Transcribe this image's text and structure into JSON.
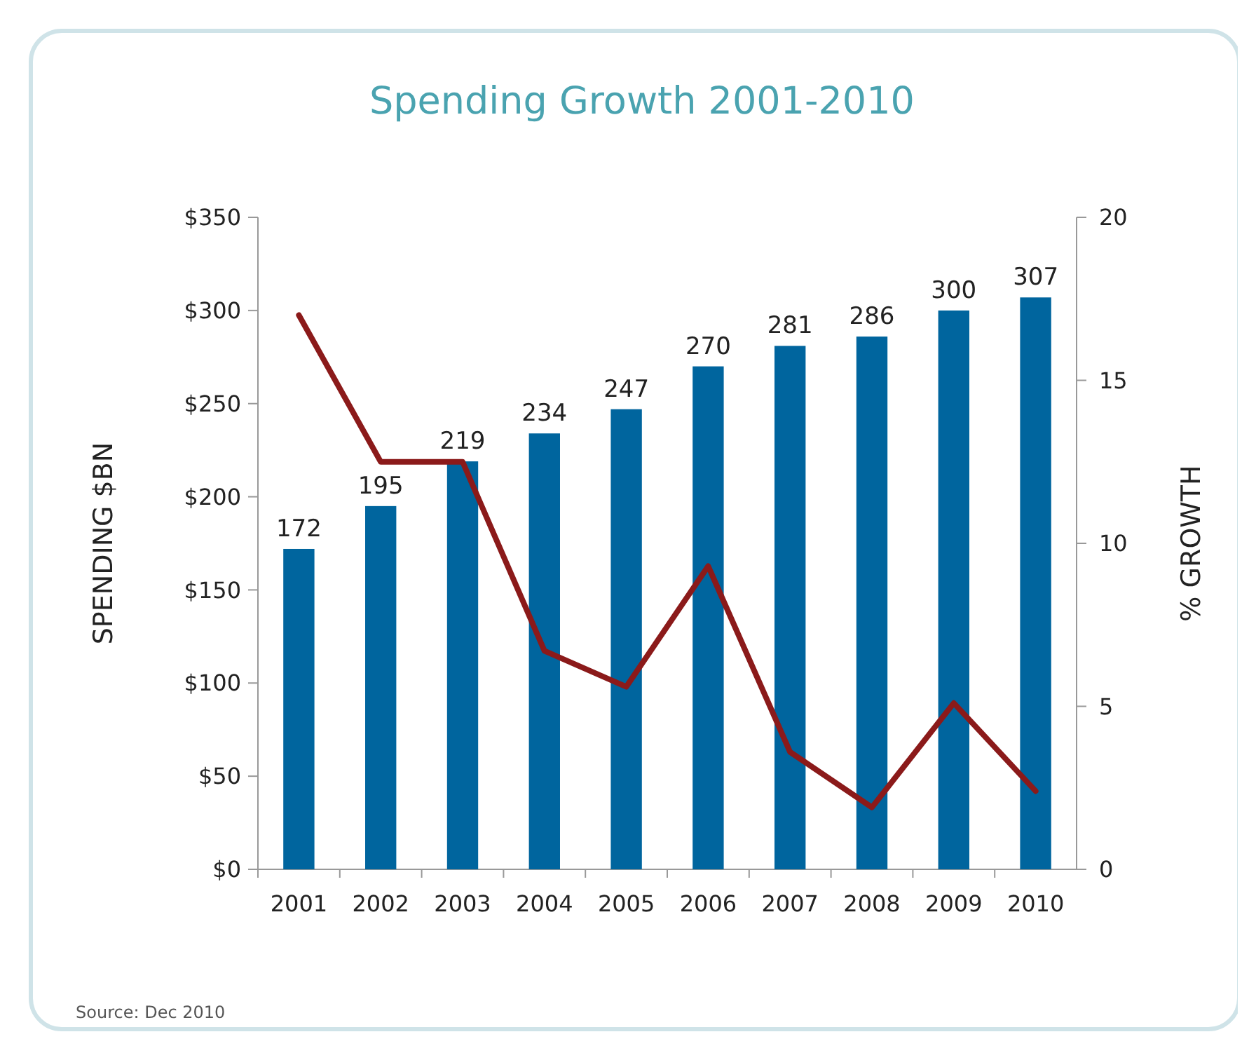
{
  "chart_data": {
    "type": "bar",
    "title": "Spending Growth 2001-2010",
    "ylabel": "SPENDING $BN",
    "y2label": "% GROWTH",
    "categories": [
      "2001",
      "2002",
      "2003",
      "2004",
      "2005",
      "2006",
      "2007",
      "2008",
      "2009",
      "2010"
    ],
    "series": [
      {
        "color": "#00659e",
        "values": [
          172,
          195,
          219,
          234,
          247,
          270,
          281,
          286,
          300,
          307
        ],
        "value_labels": [
          "172",
          "195",
          "219",
          "234",
          "247",
          "270",
          "281",
          "286",
          "300",
          "307"
        ]
      },
      {
        "type": "line",
        "axis": "y2",
        "color": "#8b1a1a",
        "values": [
          17.0,
          12.5,
          12.5,
          6.7,
          5.6,
          9.3,
          3.6,
          1.9,
          5.1,
          2.4
        ]
      }
    ],
    "ylim": [
      0,
      350
    ],
    "yticks": [
      {
        "value": 0,
        "label": "$0"
      },
      {
        "value": 50,
        "label": "$50"
      },
      {
        "value": 100,
        "label": "$100"
      },
      {
        "value": 150,
        "label": "$150"
      },
      {
        "value": 200,
        "label": "$200"
      },
      {
        "value": 250,
        "label": "$250"
      },
      {
        "value": 300,
        "label": "$300"
      },
      {
        "value": 350,
        "label": "$350"
      }
    ],
    "y2lim": [
      0,
      20
    ],
    "y2ticks": [
      0,
      5,
      10,
      15,
      20
    ],
    "annotations": [
      "Source: Dec 2010"
    ]
  }
}
